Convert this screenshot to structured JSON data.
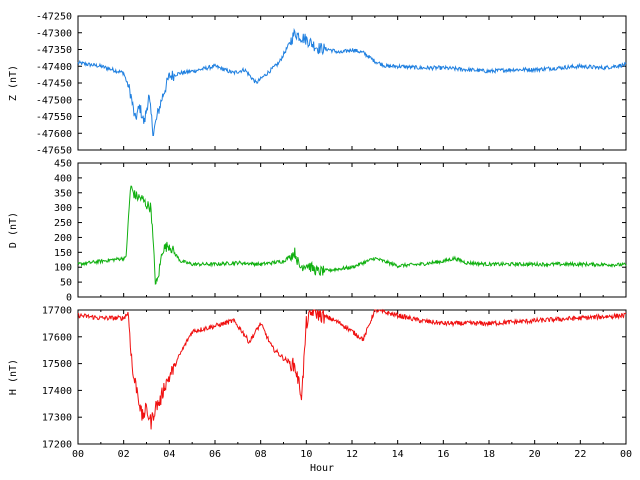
{
  "chart_data": [
    {
      "type": "line",
      "ylabel": "Z (nT)",
      "ylim": [
        -47650,
        -47250
      ],
      "yticks": [
        -47250,
        -47300,
        -47350,
        -47400,
        -47450,
        -47500,
        -47550,
        -47600,
        -47650
      ],
      "xlim": [
        0,
        24
      ],
      "color": "#2080e0",
      "noise": 6,
      "x": [
        0,
        1,
        2,
        2.3,
        2.5,
        2.7,
        2.9,
        3.1,
        3.3,
        3.5,
        3.7,
        4.0,
        4.5,
        5,
        6,
        6.8,
        7.3,
        7.8,
        8.3,
        8.8,
        9.2,
        9.5,
        9.7,
        10.0,
        10.5,
        11,
        11.5,
        12,
        12.5,
        13,
        13.5,
        14,
        15,
        16,
        17,
        18,
        19,
        20,
        21,
        22,
        23,
        24
      ],
      "y": [
        -47390,
        -47400,
        -47420,
        -47480,
        -47560,
        -47520,
        -47570,
        -47490,
        -47600,
        -47540,
        -47490,
        -47430,
        -47420,
        -47415,
        -47400,
        -47420,
        -47410,
        -47450,
        -47420,
        -47390,
        -47340,
        -47300,
        -47310,
        -47320,
        -47345,
        -47350,
        -47360,
        -47350,
        -47360,
        -47385,
        -47400,
        -47400,
        -47405,
        -47405,
        -47410,
        -47415,
        -47410,
        -47410,
        -47405,
        -47400,
        -47405,
        -47395
      ]
    },
    {
      "type": "line",
      "ylabel": "D (nT)",
      "ylim": [
        0,
        450
      ],
      "yticks": [
        0,
        50,
        100,
        150,
        200,
        250,
        300,
        350,
        400,
        450
      ],
      "xlim": [
        0,
        24
      ],
      "color": "#10b010",
      "noise": 6,
      "x": [
        0,
        1,
        2,
        2.1,
        2.3,
        2.5,
        2.8,
        3.0,
        3.2,
        3.4,
        3.5,
        3.7,
        4.0,
        4.2,
        4.5,
        5,
        6,
        7,
        8,
        9,
        9.5,
        9.7,
        10,
        10.5,
        11,
        12,
        13,
        14,
        15,
        16,
        16.5,
        17,
        18,
        20,
        22,
        24
      ],
      "y": [
        110,
        120,
        130,
        130,
        370,
        340,
        330,
        310,
        300,
        40,
        60,
        160,
        175,
        150,
        120,
        110,
        110,
        115,
        110,
        120,
        150,
        100,
        110,
        85,
        90,
        100,
        130,
        105,
        110,
        120,
        130,
        115,
        110,
        110,
        110,
        108
      ]
    },
    {
      "type": "line",
      "ylabel": "H (nT)",
      "ylim": [
        17200,
        17700
      ],
      "yticks": [
        17200,
        17300,
        17400,
        17500,
        17600,
        17700
      ],
      "xlim": [
        0,
        24
      ],
      "xticks": [
        "00",
        "02",
        "04",
        "06",
        "08",
        "10",
        "12",
        "14",
        "16",
        "18",
        "20",
        "22",
        "00"
      ],
      "xlabel": "Hour",
      "color": "#f01010",
      "noise": 9,
      "x": [
        0,
        1,
        2,
        2.2,
        2.4,
        2.6,
        2.8,
        3.0,
        3.2,
        3.4,
        3.6,
        3.8,
        4.0,
        4.5,
        5,
        6,
        6.8,
        7.2,
        7.5,
        8,
        8.5,
        9,
        9.5,
        9.8,
        10.0,
        10.3,
        10.6,
        11,
        11.5,
        12,
        12.5,
        13,
        14,
        15,
        16,
        17,
        18,
        20,
        22,
        24
      ],
      "y": [
        17680,
        17670,
        17670,
        17690,
        17460,
        17400,
        17300,
        17330,
        17280,
        17340,
        17360,
        17420,
        17450,
        17540,
        17620,
        17640,
        17660,
        17620,
        17580,
        17650,
        17560,
        17520,
        17490,
        17380,
        17650,
        17700,
        17680,
        17670,
        17650,
        17620,
        17590,
        17700,
        17680,
        17660,
        17650,
        17650,
        17650,
        17660,
        17670,
        17680
      ]
    }
  ]
}
